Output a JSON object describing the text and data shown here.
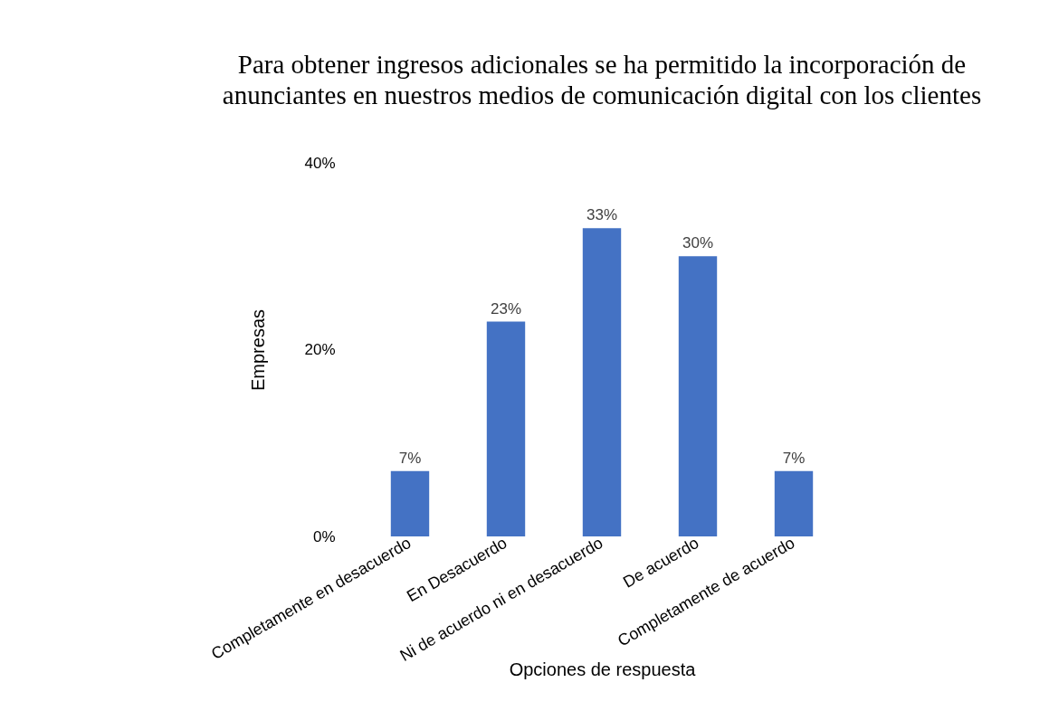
{
  "chart_data": {
    "type": "bar",
    "title": "Para obtener ingresos adicionales se ha permitido la incorporación de anunciantes en nuestros medios de comunicación digital con los clientes",
    "xlabel": "Opciones de respuesta",
    "ylabel": "Empresas",
    "categories": [
      "Completamente en desacuerdo",
      "En Desacuerdo",
      "Ni de acuerdo ni en desacuerdo",
      "De acuerdo",
      "Completamente de acuerdo"
    ],
    "values": [
      7,
      23,
      33,
      30,
      7
    ],
    "value_labels": [
      "7%",
      "23%",
      "33%",
      "30%",
      "7%"
    ],
    "color": "#4472c4",
    "ylim": [
      0,
      40
    ],
    "yticks": [
      {
        "value": 0,
        "label": "0%"
      },
      {
        "value": 20,
        "label": "20%"
      },
      {
        "value": 40,
        "label": "40%"
      }
    ],
    "grid": false
  }
}
